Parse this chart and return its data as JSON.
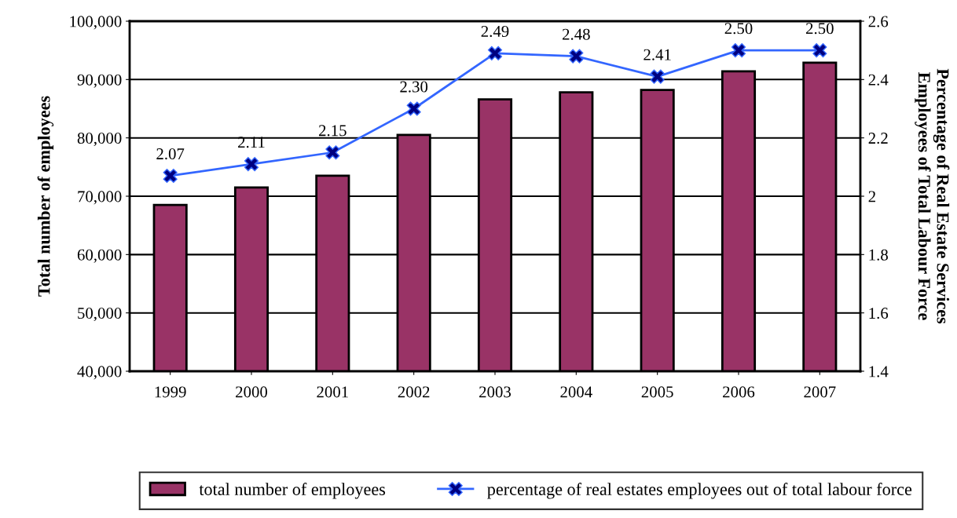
{
  "chart_data": {
    "type": "bar",
    "ylabel": "Total number of employees",
    "y2label": "Percentage of Real Estate Services\nEmployees of Total Labour Force",
    "categories": [
      "1999",
      "2000",
      "2001",
      "2002",
      "2003",
      "2004",
      "2005",
      "2006",
      "2007"
    ],
    "series": [
      {
        "name": "total number of employees",
        "color": "#993366",
        "values": [
          68500,
          71500,
          73500,
          80500,
          86600,
          87800,
          88200,
          91400,
          92900
        ]
      },
      {
        "name": "percentage of real estates employees out of total labour force",
        "type": "line",
        "axis": "y2",
        "color": "#3366ff",
        "marker": "cross",
        "values": [
          2.07,
          2.11,
          2.15,
          2.3,
          2.49,
          2.48,
          2.41,
          2.5,
          2.5
        ],
        "value_labels": [
          "2.07",
          "2.11",
          "2.15",
          "2.30",
          "2.49",
          "2.48",
          "2.41",
          "2.50",
          "2.50"
        ]
      }
    ],
    "ylim": [
      40000,
      100000
    ],
    "yticks": [
      {
        "value": 40000,
        "label": "40,000"
      },
      {
        "value": 50000,
        "label": "50,000"
      },
      {
        "value": 60000,
        "label": "60,000"
      },
      {
        "value": 70000,
        "label": "70,000"
      },
      {
        "value": 80000,
        "label": "80,000"
      },
      {
        "value": 90000,
        "label": "90,000"
      },
      {
        "value": 100000,
        "label": "100,000"
      }
    ],
    "y2lim": [
      1.4,
      2.6
    ],
    "y2ticks": [
      1.4,
      1.6,
      1.8,
      2,
      2.2,
      2.4,
      2.6
    ],
    "grid": "y",
    "legend": "bottom"
  }
}
